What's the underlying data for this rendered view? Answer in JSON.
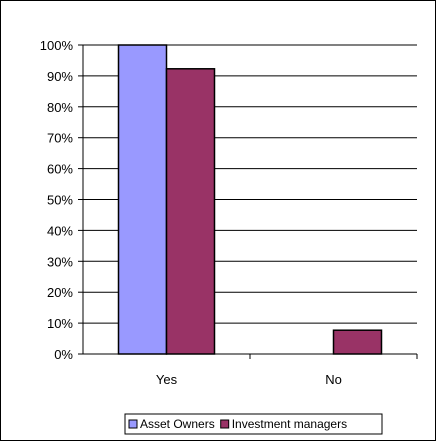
{
  "chart_data": {
    "type": "bar",
    "categories": [
      "Yes",
      "No"
    ],
    "series": [
      {
        "name": "Asset Owners",
        "values": [
          100,
          0
        ],
        "color": "#9999FF"
      },
      {
        "name": "Investment managers",
        "values": [
          92.3,
          7.7
        ],
        "color": "#993366"
      }
    ],
    "ylim": [
      0,
      100
    ],
    "y_ticks": [
      "0%",
      "10%",
      "20%",
      "30%",
      "40%",
      "50%",
      "60%",
      "70%",
      "80%",
      "90%",
      "100%"
    ],
    "grid": true,
    "legend_position": "bottom"
  }
}
